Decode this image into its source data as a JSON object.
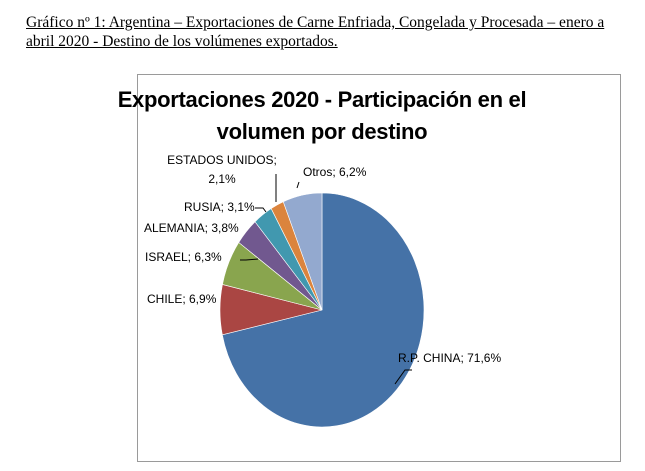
{
  "caption": "Gráfico nº 1: Argentina – Exportaciones de Carne Enfriada, Congelada y Procesada – enero a abril 2020 - Destino de los volúmenes exportados.",
  "chart_data": {
    "type": "pie",
    "title": "Exportaciones 2020 - Participación en el volumen por destino",
    "title_lines": [
      "Exportaciones 2020 - Participación en el",
      "volumen por destino"
    ],
    "categories": [
      "R.P. CHINA",
      "CHILE",
      "ISRAEL",
      "ALEMANIA",
      "RUSIA",
      "ESTADOS UNIDOS",
      "Otros"
    ],
    "values": [
      71.6,
      6.9,
      6.3,
      3.8,
      3.1,
      2.1,
      6.2
    ],
    "unit": "%",
    "colors": [
      "#4572a7",
      "#aa4643",
      "#89a54e",
      "#71588f",
      "#4198af",
      "#db843d",
      "#93a9cf"
    ],
    "labels": [
      "R.P. CHINA; 71,6%",
      "CHILE; 6,9%",
      "ISRAEL; 6,3%",
      "ALEMANIA; 3,8%",
      "RUSIA; 3,1%",
      "ESTADOS UNIDOS;",
      "Otros; 6,2%"
    ],
    "label_extra": {
      "ESTADOS UNIDOS": "2,1%"
    },
    "legend": "none"
  }
}
